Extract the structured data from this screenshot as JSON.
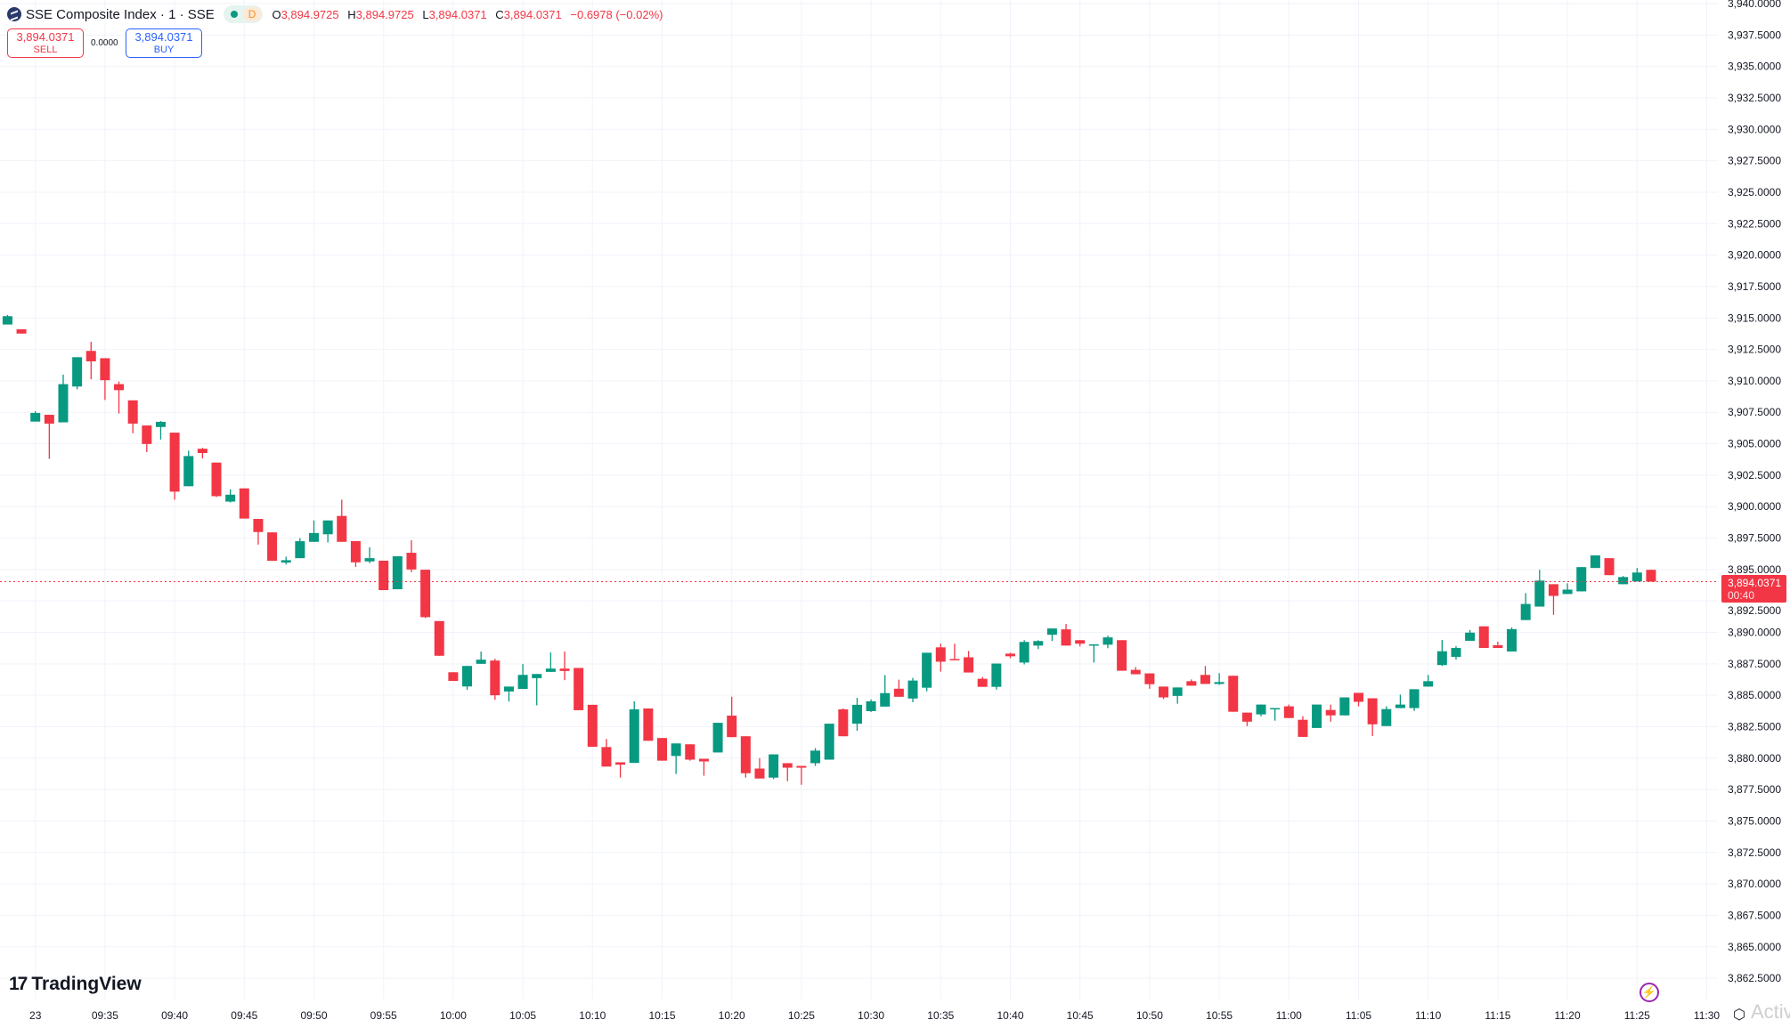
{
  "header": {
    "symbol_title": "SSE Composite Index · 1 · SSE",
    "market_status_badge": "D",
    "ohlc": {
      "o_label": "O",
      "o": "3,894.9725",
      "h_label": "H",
      "h": "3,894.9725",
      "l_label": "L",
      "l": "3,894.0371",
      "c_label": "C",
      "c": "3,894.0371",
      "change": "−0.6978 (−0.02%)"
    }
  },
  "trade": {
    "sell_price": "3,894.0371",
    "sell_label": "SELL",
    "spread": "0.0000",
    "buy_price": "3,894.0371",
    "buy_label": "BUY"
  },
  "price_tag": {
    "price": "3,894.0371",
    "countdown": "00:40"
  },
  "branding": {
    "logo_text": "TradingView"
  },
  "watermark": "Activ",
  "colors": {
    "up": "#089981",
    "down": "#F23645",
    "grid": "#f0f3fa",
    "last_price_line": "#F23645"
  },
  "icons": {
    "symbol": "sse-logo-icon",
    "lightning": "lightning-icon",
    "settings": "settings-icon"
  },
  "chart_data": {
    "type": "candlestick",
    "interval": "1 minute",
    "ylim": [
      3862.5,
      3940
    ],
    "y_ticks": [
      "3,940.0000",
      "3,937.5000",
      "3,935.0000",
      "3,932.5000",
      "3,930.0000",
      "3,927.5000",
      "3,925.0000",
      "3,922.5000",
      "3,920.0000",
      "3,917.5000",
      "3,915.0000",
      "3,912.5000",
      "3,910.0000",
      "3,907.5000",
      "3,905.0000",
      "3,902.5000",
      "3,900.0000",
      "3,897.5000",
      "3,895.0000",
      "3,892.5000",
      "3,890.0000",
      "3,887.5000",
      "3,885.0000",
      "3,882.5000",
      "3,880.0000",
      "3,877.5000",
      "3,875.0000",
      "3,872.5000",
      "3,870.0000",
      "3,867.5000",
      "3,865.0000",
      "3,862.5000"
    ],
    "x_ticks": [
      [
        "23",
        "09:30"
      ],
      [
        "09:35",
        "09:35"
      ],
      [
        "09:40",
        "09:40"
      ],
      [
        "09:45",
        "09:45"
      ],
      [
        "09:50",
        "09:50"
      ],
      [
        "09:55",
        "09:55"
      ],
      [
        "10:00",
        "10:00"
      ],
      [
        "10:05",
        "10:05"
      ],
      [
        "10:10",
        "10:10"
      ],
      [
        "10:15",
        "10:15"
      ],
      [
        "10:20",
        "10:20"
      ],
      [
        "10:25",
        "10:25"
      ],
      [
        "10:30",
        "10:30"
      ],
      [
        "10:35",
        "10:35"
      ],
      [
        "10:40",
        "10:40"
      ],
      [
        "10:45",
        "10:45"
      ],
      [
        "10:50",
        "10:50"
      ],
      [
        "10:55",
        "10:55"
      ],
      [
        "11:00",
        "11:00"
      ],
      [
        "11:05",
        "11:05"
      ],
      [
        "11:10",
        "11:10"
      ],
      [
        "11:15",
        "11:15"
      ],
      [
        "11:20",
        "11:20"
      ],
      [
        "11:25",
        "11:25"
      ],
      [
        "11:30",
        "11:30"
      ]
    ],
    "last_price": 3894.0371,
    "columns": [
      "time",
      "open",
      "high",
      "low",
      "close"
    ],
    "candles": [
      [
        "09:28",
        3914.48,
        3915.24,
        3914.48,
        3915.14
      ],
      [
        "09:29",
        3914.1,
        3914.1,
        3913.76,
        3913.76
      ],
      [
        "09:30",
        3906.76,
        3907.6,
        3906.76,
        3907.45
      ],
      [
        "09:31",
        3907.3,
        3907.3,
        3903.8,
        3906.6
      ],
      [
        "09:32",
        3906.7,
        3910.5,
        3906.7,
        3909.74
      ],
      [
        "09:33",
        3909.55,
        3911.88,
        3909.33,
        3911.88
      ],
      [
        "09:34",
        3912.38,
        3913.1,
        3910.12,
        3911.55
      ],
      [
        "09:35",
        3911.8,
        3911.8,
        3908.48,
        3910.05
      ],
      [
        "09:36",
        3909.74,
        3909.95,
        3907.4,
        3909.26
      ],
      [
        "09:37",
        3908.45,
        3908.45,
        3905.83,
        3906.6
      ],
      [
        "09:38",
        3906.45,
        3906.45,
        3904.33,
        3904.98
      ],
      [
        "09:39",
        3906.33,
        3906.8,
        3905.33,
        3906.74
      ],
      [
        "09:40",
        3905.88,
        3905.88,
        3900.55,
        3901.19
      ],
      [
        "09:41",
        3901.62,
        3904.45,
        3901.62,
        3904.02
      ],
      [
        "09:42",
        3904.6,
        3904.67,
        3903.83,
        3904.26
      ],
      [
        "09:43",
        3903.5,
        3903.5,
        3900.76,
        3900.83
      ],
      [
        "09:44",
        3900.4,
        3901.38,
        3900.33,
        3900.95
      ],
      [
        "09:45",
        3901.45,
        3901.45,
        3899.05,
        3899.05
      ],
      [
        "09:46",
        3899.02,
        3899.02,
        3896.98,
        3897.98
      ],
      [
        "09:47",
        3897.95,
        3897.95,
        3895.69,
        3895.69
      ],
      [
        "09:48",
        3895.55,
        3896.02,
        3895.4,
        3895.74
      ],
      [
        "09:49",
        3895.9,
        3897.5,
        3895.9,
        3897.25
      ],
      [
        "09:50",
        3897.2,
        3898.9,
        3897.2,
        3897.9
      ],
      [
        "09:51",
        3897.8,
        3898.9,
        3897.15,
        3898.9
      ],
      [
        "09:52",
        3899.26,
        3900.55,
        3897.2,
        3897.2
      ],
      [
        "09:53",
        3897.26,
        3897.26,
        3895.2,
        3895.57
      ],
      [
        "09:54",
        3895.64,
        3896.76,
        3895.5,
        3895.9
      ],
      [
        "09:55",
        3895.7,
        3895.7,
        3893.36,
        3893.36
      ],
      [
        "09:56",
        3893.43,
        3896.05,
        3893.43,
        3896.05
      ],
      [
        "09:57",
        3896.33,
        3897.33,
        3894.79,
        3895.0
      ],
      [
        "09:58",
        3894.98,
        3894.98,
        3891.14,
        3891.21
      ],
      [
        "09:59",
        3890.9,
        3890.9,
        3888.14,
        3888.14
      ],
      [
        "10:00",
        3886.83,
        3886.83,
        3886.14,
        3886.14
      ],
      [
        "10:01",
        3885.7,
        3887.33,
        3885.43,
        3887.33
      ],
      [
        "10:02",
        3887.5,
        3888.48,
        3887.5,
        3887.83
      ],
      [
        "10:03",
        3887.76,
        3887.9,
        3884.64,
        3885.0
      ],
      [
        "10:04",
        3885.3,
        3885.69,
        3884.5,
        3885.69
      ],
      [
        "10:05",
        3885.5,
        3887.48,
        3885.5,
        3886.62
      ],
      [
        "10:06",
        3886.36,
        3886.69,
        3884.2,
        3886.69
      ],
      [
        "10:07",
        3886.86,
        3888.4,
        3886.86,
        3887.12
      ],
      [
        "10:08",
        3887.12,
        3888.48,
        3886.2,
        3886.93
      ],
      [
        "10:09",
        3887.17,
        3887.17,
        3883.81,
        3883.81
      ],
      [
        "10:10",
        3884.24,
        3884.24,
        3880.9,
        3880.9
      ],
      [
        "10:11",
        3880.88,
        3881.52,
        3879.33,
        3879.33
      ],
      [
        "10:12",
        3879.67,
        3879.67,
        3878.45,
        3879.48
      ],
      [
        "10:13",
        3879.62,
        3884.52,
        3879.62,
        3883.88
      ],
      [
        "10:14",
        3883.95,
        3883.95,
        3881.38,
        3881.38
      ],
      [
        "10:15",
        3881.6,
        3881.6,
        3879.8,
        3879.8
      ],
      [
        "10:16",
        3880.17,
        3881.17,
        3878.74,
        3881.17
      ],
      [
        "10:17",
        3881.1,
        3881.1,
        3879.8,
        3879.88
      ],
      [
        "10:18",
        3879.95,
        3879.95,
        3878.6,
        3879.74
      ],
      [
        "10:19",
        3880.45,
        3882.81,
        3880.45,
        3882.81
      ],
      [
        "10:20",
        3883.38,
        3884.88,
        3881.67,
        3881.67
      ],
      [
        "10:21",
        3881.74,
        3881.74,
        3878.45,
        3878.8
      ],
      [
        "10:22",
        3879.17,
        3880.0,
        3878.38,
        3878.38
      ],
      [
        "10:23",
        3878.45,
        3880.3,
        3878.33,
        3880.3
      ],
      [
        "10:24",
        3879.6,
        3879.6,
        3878.17,
        3879.24
      ],
      [
        "10:25",
        3879.38,
        3879.38,
        3877.88,
        3879.24
      ],
      [
        "10:26",
        3879.6,
        3880.8,
        3879.38,
        3880.6
      ],
      [
        "10:27",
        3879.88,
        3882.74,
        3879.88,
        3882.74
      ],
      [
        "10:28",
        3883.88,
        3883.95,
        3881.74,
        3881.74
      ],
      [
        "10:29",
        3882.74,
        3884.8,
        3882.17,
        3884.24
      ],
      [
        "10:30",
        3883.74,
        3884.67,
        3883.67,
        3884.52
      ],
      [
        "10:31",
        3884.1,
        3886.6,
        3884.1,
        3885.17
      ],
      [
        "10:32",
        3885.52,
        3886.24,
        3884.88,
        3884.88
      ],
      [
        "10:33",
        3884.74,
        3886.38,
        3884.45,
        3886.17
      ],
      [
        "10:34",
        3885.6,
        3888.38,
        3885.31,
        3888.38
      ],
      [
        "10:35",
        3888.81,
        3889.1,
        3886.88,
        3887.67
      ],
      [
        "10:36",
        3887.88,
        3889.1,
        3887.81,
        3887.81
      ],
      [
        "10:37",
        3888.02,
        3888.52,
        3886.81,
        3886.81
      ],
      [
        "10:38",
        3886.31,
        3886.45,
        3885.67,
        3885.67
      ],
      [
        "10:39",
        3885.67,
        3887.52,
        3885.45,
        3887.52
      ],
      [
        "10:40",
        3888.31,
        3888.38,
        3887.95,
        3888.1
      ],
      [
        "10:41",
        3887.6,
        3889.38,
        3887.45,
        3889.24
      ],
      [
        "10:42",
        3888.95,
        3889.38,
        3888.67,
        3889.31
      ],
      [
        "10:43",
        3889.81,
        3890.31,
        3889.31,
        3890.31
      ],
      [
        "10:44",
        3890.24,
        3890.67,
        3888.95,
        3888.95
      ],
      [
        "10:45",
        3889.38,
        3889.38,
        3888.88,
        3889.1
      ],
      [
        "10:46",
        3889.02,
        3889.05,
        3887.6,
        3889.05
      ],
      [
        "10:47",
        3889.02,
        3889.74,
        3888.74,
        3889.6
      ],
      [
        "10:48",
        3889.38,
        3889.38,
        3886.95,
        3886.95
      ],
      [
        "10:49",
        3887.02,
        3887.24,
        3886.67,
        3886.67
      ],
      [
        "10:50",
        3886.74,
        3886.74,
        3885.52,
        3885.88
      ],
      [
        "10:51",
        3885.69,
        3885.69,
        3884.69,
        3884.83
      ],
      [
        "10:52",
        3884.95,
        3885.62,
        3884.33,
        3885.62
      ],
      [
        "10:53",
        3886.12,
        3886.26,
        3885.76,
        3885.76
      ],
      [
        "10:54",
        3886.62,
        3887.33,
        3885.9,
        3885.9
      ],
      [
        "10:55",
        3885.9,
        3886.76,
        3885.83,
        3886.05
      ],
      [
        "10:56",
        3886.55,
        3886.55,
        3883.69,
        3883.69
      ],
      [
        "10:57",
        3883.62,
        3883.62,
        3882.55,
        3882.9
      ],
      [
        "10:58",
        3883.48,
        3884.26,
        3883.33,
        3884.26
      ],
      [
        "10:59",
        3883.9,
        3883.98,
        3882.98,
        3883.98
      ],
      [
        "11:00",
        3884.12,
        3884.26,
        3883.19,
        3883.19
      ],
      [
        "11:01",
        3883.05,
        3883.33,
        3881.69,
        3881.69
      ],
      [
        "11:02",
        3882.4,
        3884.26,
        3882.4,
        3884.26
      ],
      [
        "11:03",
        3883.83,
        3884.26,
        3882.9,
        3883.4
      ],
      [
        "11:04",
        3883.4,
        3884.83,
        3883.4,
        3884.83
      ],
      [
        "11:05",
        3885.19,
        3885.19,
        3884.12,
        3884.48
      ],
      [
        "11:06",
        3884.76,
        3884.76,
        3881.76,
        3882.69
      ],
      [
        "11:07",
        3882.55,
        3884.12,
        3882.55,
        3883.9
      ],
      [
        "11:08",
        3883.98,
        3885.05,
        3883.98,
        3884.26
      ],
      [
        "11:09",
        3883.98,
        3885.48,
        3883.76,
        3885.48
      ],
      [
        "11:10",
        3885.69,
        3886.62,
        3885.69,
        3886.12
      ],
      [
        "11:11",
        3887.4,
        3889.4,
        3887.33,
        3888.5
      ],
      [
        "11:12",
        3888.05,
        3888.9,
        3887.83,
        3888.76
      ],
      [
        "11:13",
        3889.33,
        3890.19,
        3889.33,
        3889.98
      ],
      [
        "11:14",
        3890.48,
        3890.48,
        3888.76,
        3888.76
      ],
      [
        "11:15",
        3888.98,
        3889.26,
        3888.76,
        3888.76
      ],
      [
        "11:16",
        3888.48,
        3890.4,
        3888.48,
        3890.26
      ],
      [
        "11:17",
        3890.98,
        3893.12,
        3890.98,
        3892.26
      ],
      [
        "11:18",
        3892.05,
        3894.98,
        3892.05,
        3894.12
      ],
      [
        "11:19",
        3893.83,
        3893.83,
        3891.4,
        3892.9
      ],
      [
        "11:20",
        3893.05,
        3893.9,
        3893.05,
        3893.4
      ],
      [
        "11:21",
        3893.26,
        3895.19,
        3893.26,
        3895.19
      ],
      [
        "11:22",
        3895.12,
        3896.12,
        3895.12,
        3896.12
      ],
      [
        "11:23",
        3895.9,
        3895.9,
        3894.55,
        3894.55
      ],
      [
        "11:24",
        3893.83,
        3894.48,
        3893.83,
        3894.4
      ],
      [
        "11:25",
        3894.05,
        3895.12,
        3894.05,
        3894.76
      ],
      [
        "11:26",
        3894.9725,
        3894.9725,
        3894.0371,
        3894.0371
      ]
    ]
  }
}
